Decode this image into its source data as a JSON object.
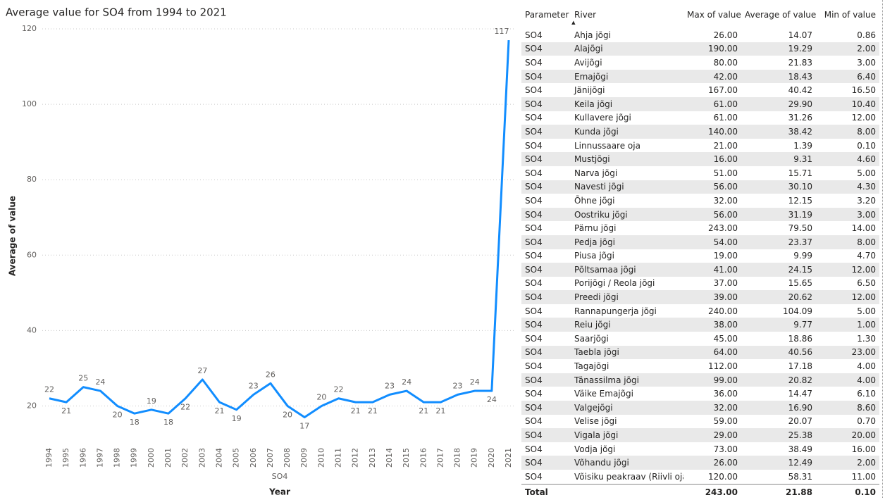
{
  "chart_data": {
    "type": "line",
    "title": "Average value for SO4 from 1994 to 2021",
    "x_label": "Year",
    "y_label": "Average of value",
    "series_name": "SO4",
    "color": "#118dff",
    "categories": [
      "1994",
      "1995",
      "1996",
      "1997",
      "1998",
      "1999",
      "2000",
      "2001",
      "2002",
      "2003",
      "2004",
      "2005",
      "2006",
      "2007",
      "2008",
      "2009",
      "2010",
      "2011",
      "2012",
      "2013",
      "2014",
      "2015",
      "2016",
      "2017",
      "2018",
      "2019",
      "2020",
      "2021"
    ],
    "values": [
      22,
      21,
      25,
      24,
      20,
      18,
      19,
      18,
      22,
      27,
      21,
      19,
      23,
      26,
      20,
      17,
      20,
      22,
      21,
      21,
      23,
      24,
      21,
      21,
      23,
      24,
      24,
      117
    ],
    "ylim": [
      10,
      120
    ],
    "yticks": [
      20,
      40,
      60,
      80,
      100,
      120
    ],
    "grid": true
  },
  "table": {
    "columns": [
      "Parameter",
      "River",
      "Max of value",
      "Average of value",
      "Min of value"
    ],
    "rows": [
      [
        "SO4",
        "Ahja jõgi",
        "26.00",
        "14.07",
        "0.86"
      ],
      [
        "SO4",
        "Alajõgi",
        "190.00",
        "19.29",
        "2.00"
      ],
      [
        "SO4",
        "Avijõgi",
        "80.00",
        "21.83",
        "3.00"
      ],
      [
        "SO4",
        "Emajõgi",
        "42.00",
        "18.43",
        "6.40"
      ],
      [
        "SO4",
        "Jänijõgi",
        "167.00",
        "40.42",
        "16.50"
      ],
      [
        "SO4",
        "Keila jõgi",
        "61.00",
        "29.90",
        "10.40"
      ],
      [
        "SO4",
        "Kullavere jõgi",
        "61.00",
        "31.26",
        "12.00"
      ],
      [
        "SO4",
        "Kunda jõgi",
        "140.00",
        "38.42",
        "8.00"
      ],
      [
        "SO4",
        "Linnussaare oja",
        "21.00",
        "1.39",
        "0.10"
      ],
      [
        "SO4",
        "Mustjõgi",
        "16.00",
        "9.31",
        "4.60"
      ],
      [
        "SO4",
        "Narva jõgi",
        "51.00",
        "15.71",
        "5.00"
      ],
      [
        "SO4",
        "Navesti jõgi",
        "56.00",
        "30.10",
        "4.30"
      ],
      [
        "SO4",
        "Õhne jõgi",
        "32.00",
        "12.15",
        "3.20"
      ],
      [
        "SO4",
        "Oostriku jõgi",
        "56.00",
        "31.19",
        "3.00"
      ],
      [
        "SO4",
        "Pärnu jõgi",
        "243.00",
        "79.50",
        "14.00"
      ],
      [
        "SO4",
        "Pedja jõgi",
        "54.00",
        "23.37",
        "8.00"
      ],
      [
        "SO4",
        "Piusa jõgi",
        "19.00",
        "9.99",
        "4.70"
      ],
      [
        "SO4",
        "Põltsamaa jõgi",
        "41.00",
        "24.15",
        "12.00"
      ],
      [
        "SO4",
        "Porijõgi / Reola jõgi",
        "37.00",
        "15.65",
        "6.50"
      ],
      [
        "SO4",
        "Preedi jõgi",
        "39.00",
        "20.62",
        "12.00"
      ],
      [
        "SO4",
        "Rannapungerja jõgi",
        "240.00",
        "104.09",
        "5.00"
      ],
      [
        "SO4",
        "Reiu jõgi",
        "38.00",
        "9.77",
        "1.00"
      ],
      [
        "SO4",
        "Saarjõgi",
        "45.00",
        "18.86",
        "1.30"
      ],
      [
        "SO4",
        "Taebla jõgi",
        "64.00",
        "40.56",
        "23.00"
      ],
      [
        "SO4",
        "Tagajõgi",
        "112.00",
        "17.18",
        "4.00"
      ],
      [
        "SO4",
        "Tänassilma jõgi",
        "99.00",
        "20.82",
        "4.00"
      ],
      [
        "SO4",
        "Väike Emajõgi",
        "36.00",
        "14.47",
        "6.10"
      ],
      [
        "SO4",
        "Valgejõgi",
        "32.00",
        "16.90",
        "8.60"
      ],
      [
        "SO4",
        "Velise jõgi",
        "59.00",
        "20.07",
        "0.70"
      ],
      [
        "SO4",
        "Vigala jõgi",
        "29.00",
        "25.38",
        "20.00"
      ],
      [
        "SO4",
        "Vodja jõgi",
        "73.00",
        "38.49",
        "16.00"
      ],
      [
        "SO4",
        "Võhandu jõgi",
        "26.00",
        "12.49",
        "2.00"
      ],
      [
        "SO4",
        "Võisiku peakraav (Riivli oja)",
        "120.00",
        "58.31",
        "11.00"
      ]
    ],
    "total": [
      "Total",
      "243.00",
      "21.88",
      "0.10"
    ]
  }
}
